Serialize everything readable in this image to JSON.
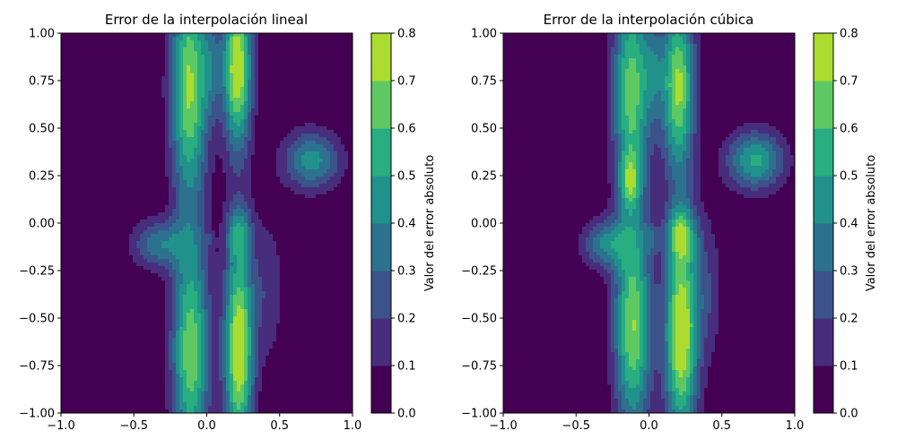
{
  "figure": {
    "background": "#ffffff"
  },
  "chart_data": [
    {
      "type": "heatmap",
      "subtype": "filled-contour",
      "title": "Error de la interpolación lineal",
      "xlabel": "",
      "ylabel": "",
      "xlim": [
        -1.0,
        1.0
      ],
      "ylim": [
        -1.0,
        1.0
      ],
      "xticks": [
        -1.0,
        -0.5,
        0.0,
        0.5,
        1.0
      ],
      "xtick_labels": [
        "−1.0",
        "−0.5",
        "0.0",
        "0.5",
        "1.0"
      ],
      "yticks": [
        -1.0,
        -0.75,
        -0.5,
        -0.25,
        0.0,
        0.25,
        0.5,
        0.75,
        1.0
      ],
      "ytick_labels": [
        "−1.00",
        "−0.75",
        "−0.50",
        "−0.25",
        "0.00",
        "0.25",
        "0.50",
        "0.75",
        "1.00"
      ],
      "colorbar": {
        "label": "Valor del error absoluto",
        "levels": [
          0.0,
          0.1,
          0.2,
          0.3,
          0.4,
          0.5,
          0.6,
          0.7,
          0.8
        ],
        "tick_labels": [
          "0.0",
          "0.1",
          "0.2",
          "0.3",
          "0.4",
          "0.5",
          "0.6",
          "0.7",
          "0.8"
        ],
        "colors": [
          "#440154",
          "#472d7b",
          "#3b528b",
          "#2c728e",
          "#21918c",
          "#28ae80",
          "#5ec962",
          "#addc30"
        ]
      },
      "colormap": "viridis",
      "features": [
        {
          "x": -0.12,
          "y": 0.72,
          "sx": 0.09,
          "sy": 0.42,
          "peak": 0.72
        },
        {
          "x": 0.21,
          "y": 0.82,
          "sx": 0.07,
          "sy": 0.3,
          "peak": 0.82
        },
        {
          "x": 0.03,
          "y": 0.82,
          "sx": 0.05,
          "sy": 0.18,
          "peak": 0.22
        },
        {
          "x": 0.72,
          "y": 0.33,
          "sx": 0.14,
          "sy": 0.11,
          "peak": 0.45
        },
        {
          "x": -0.33,
          "y": -0.11,
          "sx": 0.13,
          "sy": 0.09,
          "peak": 0.37
        },
        {
          "x": -0.11,
          "y": -0.68,
          "sx": 0.09,
          "sy": 0.42,
          "peak": 0.68
        },
        {
          "x": 0.22,
          "y": -0.66,
          "sx": 0.07,
          "sy": 0.4,
          "peak": 0.82
        },
        {
          "x": 0.22,
          "y": -0.05,
          "sx": 0.06,
          "sy": 0.1,
          "peak": 0.3
        },
        {
          "x": 0.02,
          "y": -0.09,
          "sx": 0.025,
          "sy": 0.025,
          "peak": 0.11
        },
        {
          "x": 0.42,
          "y": -0.35,
          "sx": 0.08,
          "sy": 0.28,
          "peak": 0.18
        }
      ]
    },
    {
      "type": "heatmap",
      "subtype": "filled-contour",
      "title": "Error de la interpolación cúbica",
      "xlabel": "",
      "ylabel": "",
      "xlim": [
        -1.0,
        1.0
      ],
      "ylim": [
        -1.0,
        1.0
      ],
      "xticks": [
        -1.0,
        -0.5,
        0.0,
        0.5,
        1.0
      ],
      "xtick_labels": [
        "−1.0",
        "−0.5",
        "0.0",
        "0.5",
        "1.0"
      ],
      "yticks": [
        -1.0,
        -0.75,
        -0.5,
        -0.25,
        0.0,
        0.25,
        0.5,
        0.75,
        1.0
      ],
      "ytick_labels": [
        "−1.00",
        "−0.75",
        "−0.50",
        "−0.25",
        "0.00",
        "0.25",
        "0.50",
        "0.75",
        "1.00"
      ],
      "colorbar": {
        "label": "Valor del error absoluto",
        "levels": [
          0.0,
          0.1,
          0.2,
          0.3,
          0.4,
          0.5,
          0.6,
          0.7,
          0.8
        ],
        "tick_labels": [
          "0.0",
          "0.1",
          "0.2",
          "0.3",
          "0.4",
          "0.5",
          "0.6",
          "0.7",
          "0.8"
        ],
        "colors": [
          "#440154",
          "#472d7b",
          "#3b528b",
          "#2c728e",
          "#21918c",
          "#28ae80",
          "#5ec962",
          "#addc30"
        ]
      },
      "colormap": "viridis",
      "features": [
        {
          "x": -0.12,
          "y": 0.7,
          "sx": 0.09,
          "sy": 0.4,
          "peak": 0.66
        },
        {
          "x": 0.2,
          "y": 0.72,
          "sx": 0.08,
          "sy": 0.32,
          "peak": 0.73
        },
        {
          "x": 0.03,
          "y": 0.8,
          "sx": 0.05,
          "sy": 0.18,
          "peak": 0.22
        },
        {
          "x": -0.13,
          "y": 0.22,
          "sx": 0.05,
          "sy": 0.1,
          "peak": 0.35
        },
        {
          "x": 0.73,
          "y": 0.33,
          "sx": 0.14,
          "sy": 0.11,
          "peak": 0.52
        },
        {
          "x": -0.3,
          "y": -0.11,
          "sx": 0.11,
          "sy": 0.09,
          "peak": 0.4
        },
        {
          "x": -0.11,
          "y": -0.55,
          "sx": 0.09,
          "sy": 0.4,
          "peak": 0.7
        },
        {
          "x": 0.22,
          "y": -0.58,
          "sx": 0.08,
          "sy": 0.4,
          "peak": 0.82
        },
        {
          "x": 0.22,
          "y": -0.06,
          "sx": 0.07,
          "sy": 0.1,
          "peak": 0.4
        },
        {
          "x": 0.02,
          "y": -0.08,
          "sx": 0.04,
          "sy": 0.05,
          "peak": 0.17
        },
        {
          "x": 0.4,
          "y": -0.35,
          "sx": 0.08,
          "sy": 0.28,
          "peak": 0.18
        }
      ]
    }
  ]
}
